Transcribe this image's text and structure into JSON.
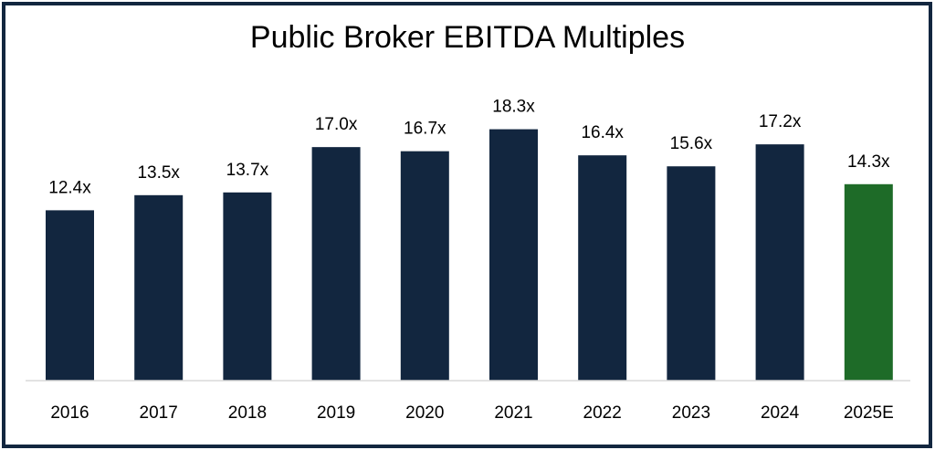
{
  "chart_data": {
    "type": "bar",
    "title": "Public Broker EBITDA Multiples",
    "xlabel": "",
    "ylabel": "",
    "categories": [
      "2016",
      "2017",
      "2018",
      "2019",
      "2020",
      "2021",
      "2022",
      "2023",
      "2024",
      "2025E"
    ],
    "values": [
      12.4,
      13.5,
      13.7,
      17.0,
      16.7,
      18.3,
      16.4,
      15.6,
      17.2,
      14.3
    ],
    "data_labels": [
      "12.4x",
      "13.5x",
      "13.7x",
      "17.0x",
      "16.7x",
      "18.3x",
      "16.4x",
      "15.6x",
      "17.2x",
      "14.3x"
    ],
    "ylim": [
      0,
      20
    ],
    "grid": false,
    "legend": "none",
    "colors": {
      "actual": "#12263f",
      "estimate": "#1e6b28",
      "axis": "#d9d9d9",
      "frame": "#12263f"
    },
    "estimate_categories": [
      "2025E"
    ]
  }
}
